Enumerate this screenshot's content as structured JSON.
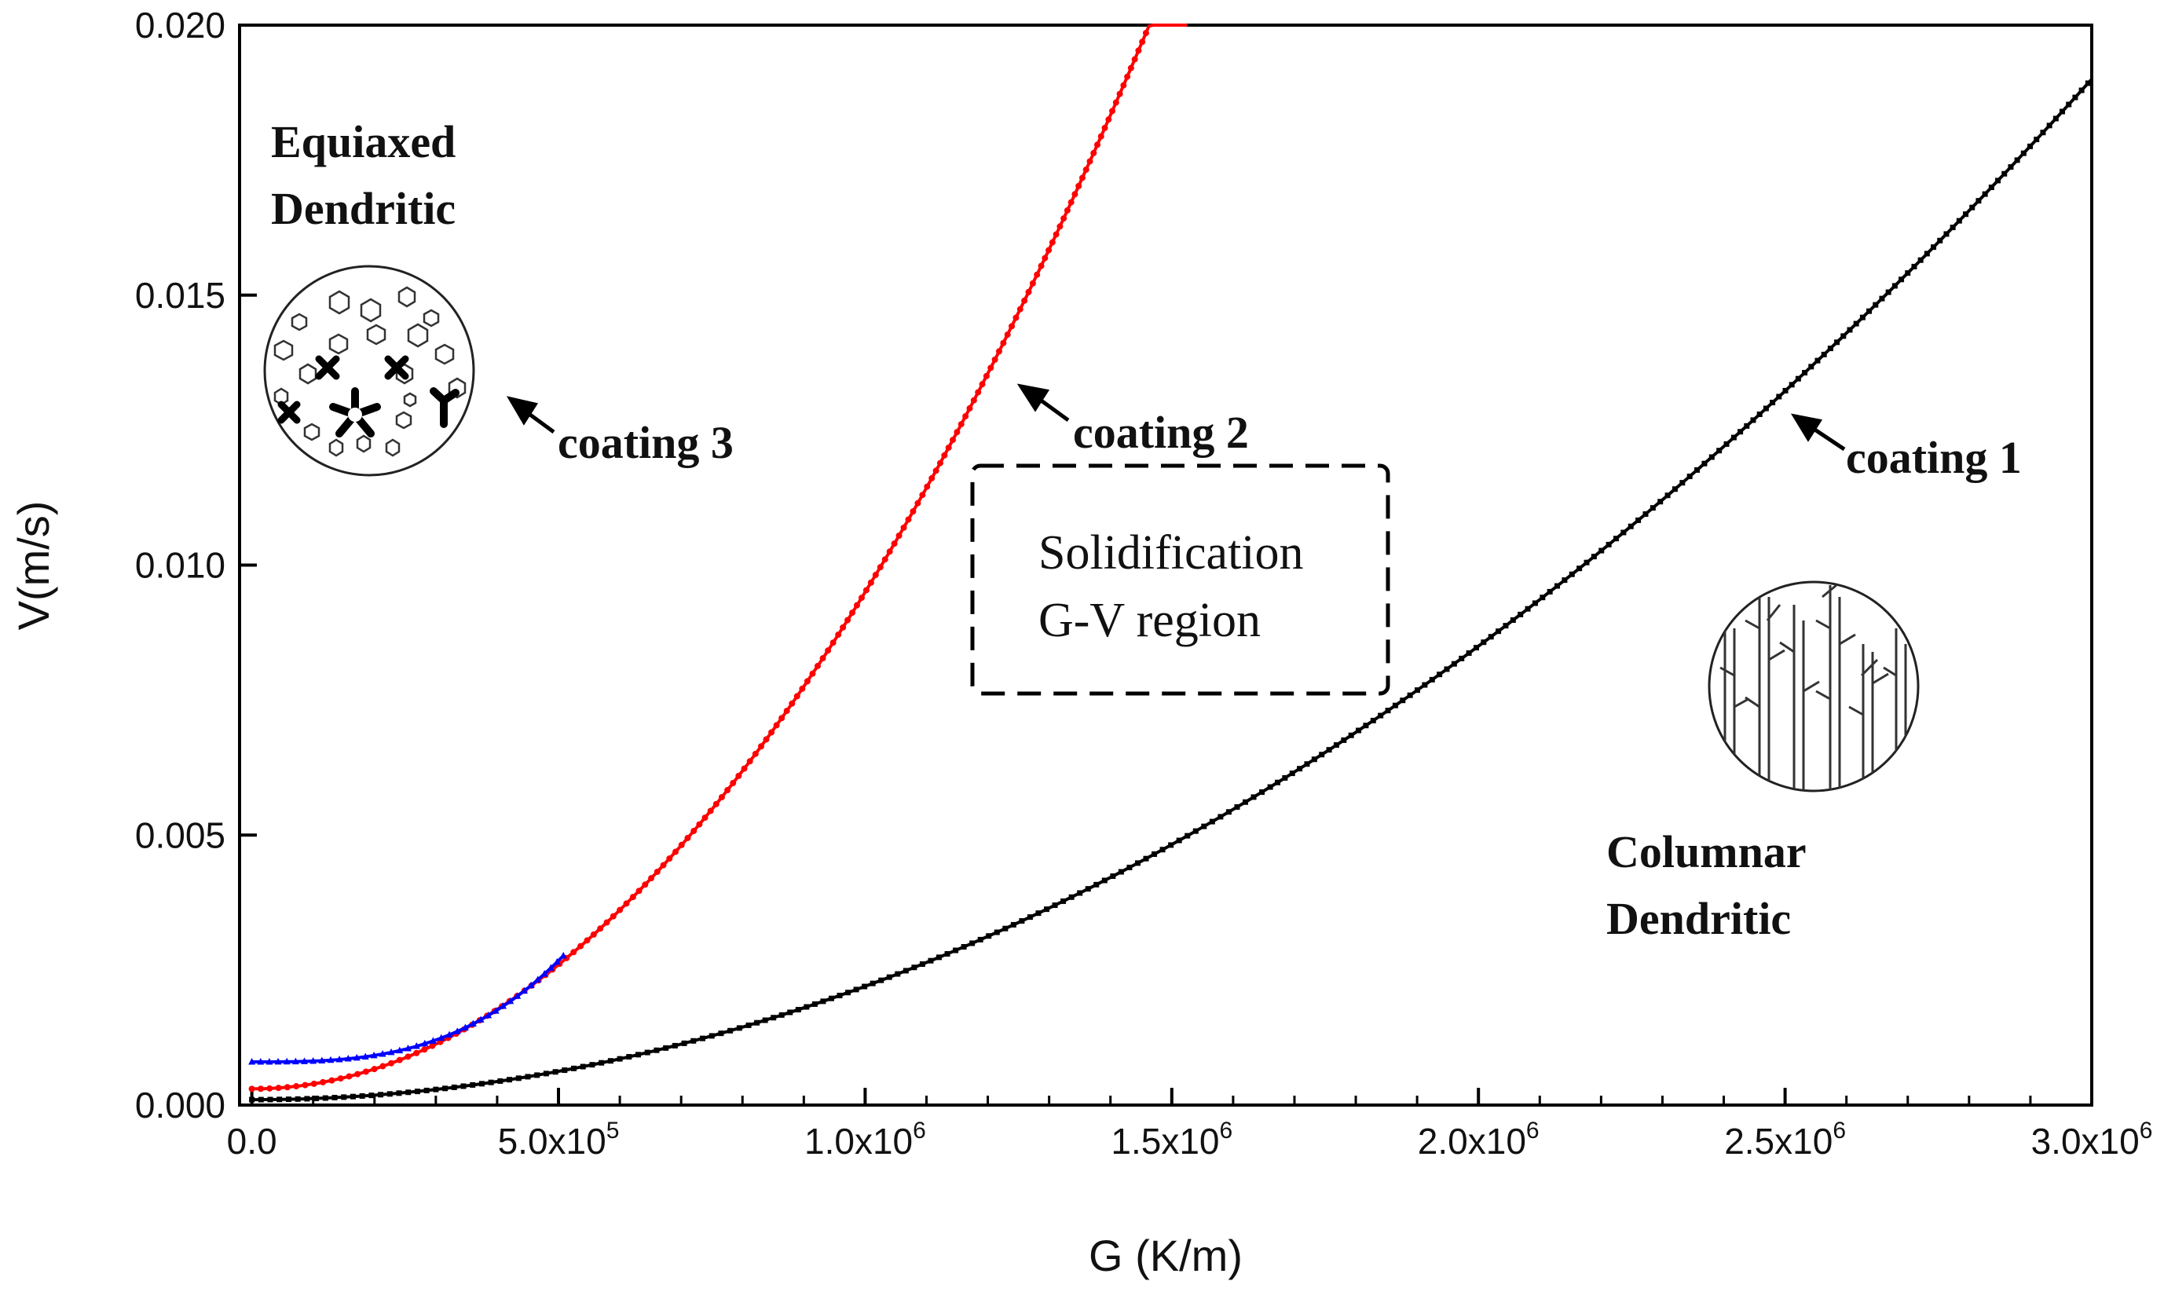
{
  "chart_data": {
    "type": "line",
    "title": "",
    "xlabel": "G (K/m)",
    "ylabel": "V(m/s)",
    "xlim": [
      -20000,
      3000000
    ],
    "ylim": [
      0,
      0.02
    ],
    "x_ticks": [
      {
        "value": 0,
        "label": "0.0"
      },
      {
        "value": 500000,
        "label": "5.0x10",
        "exp": "5"
      },
      {
        "value": 1000000,
        "label": "1.0x10",
        "exp": "6"
      },
      {
        "value": 1500000,
        "label": "1.5x10",
        "exp": "6"
      },
      {
        "value": 2000000,
        "label": "2.0x10",
        "exp": "6"
      },
      {
        "value": 2500000,
        "label": "2.5x10",
        "exp": "6"
      },
      {
        "value": 3000000,
        "label": "3.0x10",
        "exp": "6"
      }
    ],
    "y_ticks": [
      {
        "value": 0,
        "label": "0.000"
      },
      {
        "value": 0.005,
        "label": "0.005"
      },
      {
        "value": 0.01,
        "label": "0.010"
      },
      {
        "value": 0.015,
        "label": "0.015"
      },
      {
        "value": 0.02,
        "label": "0.020"
      }
    ],
    "series": [
      {
        "name": "coating 1",
        "color": "#000000",
        "marker": "square",
        "v0": 0.0001,
        "coef": 2.1e-15,
        "power": 2.0,
        "x_max": 3000000
      },
      {
        "name": "coating 2",
        "color": "#ff0000",
        "marker": "circle",
        "v0": 0.0003,
        "coef": 9.2e-15,
        "power": 2.0,
        "x_max": 1525000
      },
      {
        "name": "coating 3",
        "color": "#0000ff",
        "marker": "triangle",
        "v0": 0.0008,
        "coef": 1.5e-20,
        "power": 3.0,
        "x_max": 510000
      }
    ],
    "annotations": [
      {
        "id": "equiaxed",
        "lines": [
          "Equiaxed",
          "Dendritic"
        ]
      },
      {
        "id": "columnar",
        "lines": [
          "Columnar",
          "Dendritic"
        ]
      },
      {
        "id": "region",
        "lines": [
          "Solidification",
          "G-V region"
        ]
      },
      {
        "id": "arrow1",
        "text": "coating 1"
      },
      {
        "id": "arrow2",
        "text": "coating 2"
      },
      {
        "id": "arrow3",
        "text": "coating 3"
      }
    ]
  }
}
